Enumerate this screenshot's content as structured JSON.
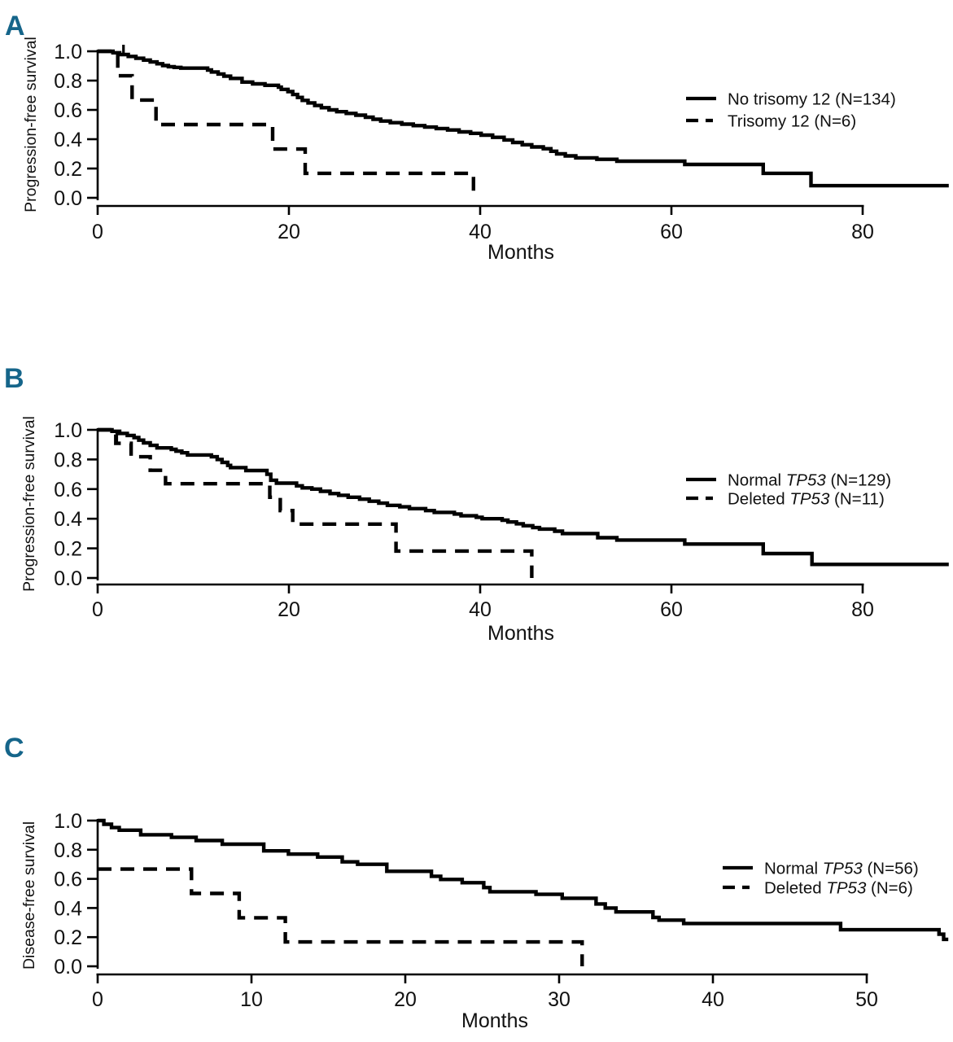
{
  "figure": {
    "background": "#ffffff",
    "panel_letter_color": "#15658a",
    "curve_color": "#000000"
  },
  "chart_data": [
    {
      "type": "line",
      "subtype": "kaplan-meier-step",
      "panel_label": "A",
      "title": "",
      "xlabel": "Months",
      "ylabel": "Progression-free survival",
      "xlim": [
        0,
        80
      ],
      "ylim": [
        0.0,
        1.0
      ],
      "x_ticks": [
        "0",
        "20",
        "40",
        "60",
        "80"
      ],
      "y_ticks": [
        "1.0",
        "0.8",
        "0.6",
        "0.4",
        "0.2",
        "0.0"
      ],
      "grid": false,
      "legend_position": "right",
      "series": [
        {
          "name": "No trisomy 12 (N=134)",
          "label_pre": "No trisomy 12 ",
          "label_italic": "",
          "label_post": "(N=134)",
          "line_style": "solid",
          "end_month": 89,
          "censor_marks": [
            {
              "month": 2.7,
              "value": 0.978,
              "dir": "up"
            }
          ],
          "steps": [
            [
              0,
              1.0
            ],
            [
              1.6,
              0.99
            ],
            [
              2.3,
              0.978
            ],
            [
              3.2,
              0.965
            ],
            [
              4.0,
              0.952
            ],
            [
              4.8,
              0.94
            ],
            [
              5.5,
              0.927
            ],
            [
              6.2,
              0.915
            ],
            [
              6.8,
              0.903
            ],
            [
              7.4,
              0.895
            ],
            [
              8.0,
              0.89
            ],
            [
              8.7,
              0.885
            ],
            [
              11.5,
              0.872
            ],
            [
              11.9,
              0.859
            ],
            [
              12.6,
              0.845
            ],
            [
              13.2,
              0.83
            ],
            [
              13.9,
              0.815
            ],
            [
              15.1,
              0.79
            ],
            [
              16.2,
              0.778
            ],
            [
              17.5,
              0.768
            ],
            [
              18.9,
              0.755
            ],
            [
              19.2,
              0.74
            ],
            [
              19.9,
              0.725
            ],
            [
              20.4,
              0.705
            ],
            [
              20.9,
              0.685
            ],
            [
              21.4,
              0.665
            ],
            [
              22.0,
              0.648
            ],
            [
              22.7,
              0.63
            ],
            [
              23.4,
              0.615
            ],
            [
              24.2,
              0.6
            ],
            [
              25.0,
              0.588
            ],
            [
              26.0,
              0.576
            ],
            [
              27.0,
              0.564
            ],
            [
              28.0,
              0.55
            ],
            [
              28.8,
              0.536
            ],
            [
              29.6,
              0.524
            ],
            [
              30.6,
              0.513
            ],
            [
              31.8,
              0.503
            ],
            [
              33.0,
              0.493
            ],
            [
              34.2,
              0.483
            ],
            [
              35.4,
              0.473
            ],
            [
              36.6,
              0.463
            ],
            [
              37.8,
              0.45
            ],
            [
              39.0,
              0.44
            ],
            [
              40.1,
              0.428
            ],
            [
              41.3,
              0.413
            ],
            [
              42.5,
              0.395
            ],
            [
              43.4,
              0.378
            ],
            [
              44.4,
              0.362
            ],
            [
              45.4,
              0.347
            ],
            [
              46.6,
              0.335
            ],
            [
              47.4,
              0.318
            ],
            [
              48.0,
              0.3
            ],
            [
              48.9,
              0.286
            ],
            [
              50.0,
              0.273
            ],
            [
              52.2,
              0.263
            ],
            [
              54.3,
              0.25
            ],
            [
              61.4,
              0.228
            ],
            [
              69.6,
              0.167
            ],
            [
              74.6,
              0.083
            ]
          ]
        },
        {
          "name": "Trisomy 12 (N=6)",
          "label_pre": "Trisomy 12 ",
          "label_italic": "",
          "label_post": "(N=6)",
          "line_style": "dashed",
          "end_month": 39.3,
          "censor_marks": [],
          "steps": [
            [
              0,
              1.0
            ],
            [
              2.1,
              0.833
            ],
            [
              3.6,
              0.667
            ],
            [
              6.1,
              0.5
            ],
            [
              18.3,
              0.333
            ],
            [
              21.7,
              0.167
            ],
            [
              39.3,
              0.0
            ]
          ]
        }
      ]
    },
    {
      "type": "line",
      "subtype": "kaplan-meier-step",
      "panel_label": "B",
      "title": "",
      "xlabel": "Months",
      "ylabel": "Progression-free survival",
      "xlim": [
        0,
        80
      ],
      "ylim": [
        0.0,
        1.0
      ],
      "x_ticks": [
        "0",
        "20",
        "40",
        "60",
        "80"
      ],
      "y_ticks": [
        "1.0",
        "0.8",
        "0.6",
        "0.4",
        "0.2",
        "0.0"
      ],
      "grid": false,
      "legend_position": "right",
      "series": [
        {
          "name": "Normal TP53 (N=129)",
          "label_pre": "Normal ",
          "label_italic": "TP53",
          "label_post": " (N=129)",
          "line_style": "solid",
          "end_month": 89,
          "censor_marks": [
            {
              "month": 2.0,
              "value": 0.99,
              "dir": "down"
            }
          ],
          "steps": [
            [
              0,
              1.0
            ],
            [
              1.5,
              0.99
            ],
            [
              2.3,
              0.976
            ],
            [
              3.1,
              0.962
            ],
            [
              3.8,
              0.948
            ],
            [
              4.3,
              0.93
            ],
            [
              4.8,
              0.912
            ],
            [
              5.5,
              0.895
            ],
            [
              6.2,
              0.878
            ],
            [
              7.7,
              0.868
            ],
            [
              8.2,
              0.856
            ],
            [
              8.8,
              0.845
            ],
            [
              9.4,
              0.83
            ],
            [
              11.9,
              0.818
            ],
            [
              12.5,
              0.8
            ],
            [
              13.0,
              0.78
            ],
            [
              13.6,
              0.76
            ],
            [
              13.9,
              0.745
            ],
            [
              15.5,
              0.725
            ],
            [
              17.7,
              0.7
            ],
            [
              18.1,
              0.66
            ],
            [
              18.7,
              0.64
            ],
            [
              20.8,
              0.622
            ],
            [
              21.4,
              0.608
            ],
            [
              22.4,
              0.6
            ],
            [
              23.3,
              0.585
            ],
            [
              24.3,
              0.57
            ],
            [
              25.2,
              0.558
            ],
            [
              26.2,
              0.545
            ],
            [
              27.4,
              0.532
            ],
            [
              28.4,
              0.518
            ],
            [
              29.4,
              0.505
            ],
            [
              30.3,
              0.49
            ],
            [
              31.6,
              0.48
            ],
            [
              32.6,
              0.468
            ],
            [
              34.3,
              0.455
            ],
            [
              35.2,
              0.443
            ],
            [
              37.3,
              0.432
            ],
            [
              38.0,
              0.42
            ],
            [
              39.6,
              0.41
            ],
            [
              40.2,
              0.4
            ],
            [
              42.3,
              0.39
            ],
            [
              42.9,
              0.378
            ],
            [
              43.8,
              0.366
            ],
            [
              44.5,
              0.353
            ],
            [
              45.5,
              0.34
            ],
            [
              46.2,
              0.33
            ],
            [
              47.8,
              0.316
            ],
            [
              48.6,
              0.3
            ],
            [
              52.3,
              0.272
            ],
            [
              54.3,
              0.256
            ],
            [
              61.4,
              0.229
            ],
            [
              69.6,
              0.165
            ],
            [
              74.7,
              0.092
            ]
          ]
        },
        {
          "name": "Deleted TP53 (N=11)",
          "label_pre": "Deleted ",
          "label_italic": "TP53",
          "label_post": " (N=11)",
          "line_style": "dashed",
          "end_month": 45.4,
          "censor_marks": [],
          "steps": [
            [
              0,
              1.0
            ],
            [
              1.9,
              0.909
            ],
            [
              3.5,
              0.818
            ],
            [
              5.5,
              0.727
            ],
            [
              7.1,
              0.636
            ],
            [
              18.0,
              0.545
            ],
            [
              19.1,
              0.455
            ],
            [
              20.4,
              0.364
            ],
            [
              31.2,
              0.182
            ],
            [
              45.4,
              0.0
            ]
          ]
        }
      ]
    },
    {
      "type": "line",
      "subtype": "kaplan-meier-step",
      "panel_label": "C",
      "title": "",
      "xlabel": "Months",
      "ylabel": "Disease-free survival",
      "xlim": [
        0,
        50
      ],
      "ylim": [
        0.0,
        1.0
      ],
      "x_ticks": [
        "0",
        "10",
        "20",
        "30",
        "40",
        "50"
      ],
      "y_ticks": [
        "1.0",
        "0.8",
        "0.6",
        "0.4",
        "0.2",
        "0.0"
      ],
      "grid": false,
      "legend_position": "right",
      "series": [
        {
          "name": "Normal TP53 (N=56)",
          "label_pre": "Normal ",
          "label_italic": "TP53",
          "label_post": " (N=56)",
          "line_style": "solid",
          "end_month": 55.3,
          "censor_marks": [],
          "steps": [
            [
              0,
              1.0
            ],
            [
              0.4,
              0.975
            ],
            [
              0.9,
              0.952
            ],
            [
              1.4,
              0.934
            ],
            [
              2.8,
              0.903
            ],
            [
              4.8,
              0.885
            ],
            [
              6.4,
              0.863
            ],
            [
              8.1,
              0.838
            ],
            [
              10.8,
              0.792
            ],
            [
              12.4,
              0.77
            ],
            [
              14.3,
              0.75
            ],
            [
              15.9,
              0.717
            ],
            [
              16.9,
              0.7
            ],
            [
              18.8,
              0.652
            ],
            [
              21.7,
              0.618
            ],
            [
              22.3,
              0.596
            ],
            [
              23.7,
              0.574
            ],
            [
              25.1,
              0.54
            ],
            [
              25.5,
              0.512
            ],
            [
              28.5,
              0.494
            ],
            [
              30.2,
              0.467
            ],
            [
              32.4,
              0.428
            ],
            [
              33.0,
              0.4
            ],
            [
              33.7,
              0.373
            ],
            [
              36.1,
              0.335
            ],
            [
              36.5,
              0.317
            ],
            [
              38.1,
              0.294
            ],
            [
              48.3,
              0.251
            ],
            [
              54.7,
              0.22
            ],
            [
              55.0,
              0.185
            ]
          ]
        },
        {
          "name": "Deleted TP53 (N=6)",
          "label_pre": "Deleted ",
          "label_italic": "TP53",
          "label_post": " (N=6)",
          "line_style": "dashed",
          "end_month": 31.5,
          "censor_marks": [],
          "steps": [
            [
              0,
              0.667
            ],
            [
              6.1,
              0.5
            ],
            [
              9.2,
              0.333
            ],
            [
              12.2,
              0.167
            ],
            [
              31.5,
              0.0
            ]
          ]
        }
      ]
    }
  ]
}
